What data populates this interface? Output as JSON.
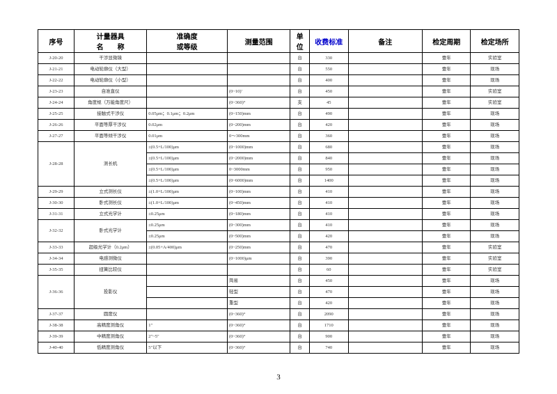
{
  "pageNumber": "3",
  "headers": [
    "序号",
    "计量器具\n名　　称",
    "准确度\n或等级",
    "测量范围",
    "单\n位",
    "收费标准",
    "备注",
    "检定周期",
    "检定场所"
  ],
  "headerBlueIdx": 5,
  "colClasses": [
    "c1",
    "c2",
    "c3",
    "c4",
    "c5",
    "c6",
    "c7",
    "c8",
    "c9"
  ],
  "rows": [
    {
      "cells": [
        "J-20-20",
        "干涉显微镜",
        "",
        "",
        "台",
        "330",
        "",
        "壹年",
        "实验室"
      ]
    },
    {
      "cells": [
        "J-21-21",
        "电动轮廓仪（大型）",
        "",
        "",
        "台",
        "550",
        "",
        "壹年",
        "现场"
      ]
    },
    {
      "cells": [
        "J-22-22",
        "电动轮廓仪（小型）",
        "",
        "",
        "台",
        "400",
        "",
        "壹年",
        "现场"
      ]
    },
    {
      "cells": [
        "J-23-23",
        "自准直仪",
        "",
        "(0~10)′",
        "台",
        "450",
        "",
        "壹年",
        "实验室"
      ]
    },
    {
      "cells": [
        "J-24-24",
        "角度规（万能角度尺）",
        "",
        "(0~360)°",
        "支",
        "45",
        "",
        "壹年",
        "实验室"
      ]
    },
    {
      "cells": [
        "J-25-25",
        "接触式干涉仪",
        "0.05μm；0.1μm；0.2μm",
        "(0~150)mm",
        "台",
        "490",
        "",
        "壹年",
        "现场"
      ]
    },
    {
      "cells": [
        "J-26-26",
        "平面等厚干涉仪",
        "0.02μm",
        "(0~200)mm",
        "台",
        "420",
        "",
        "壹年",
        "现场"
      ]
    },
    {
      "cells": [
        "J-27-27",
        "平面等倾干涉仪",
        "0.01μm",
        "0～300mm",
        "台",
        "360",
        "",
        "壹年",
        "现场"
      ]
    },
    {
      "cells": [
        {
          "t": "J-28-28",
          "rs": 4
        },
        {
          "t": "测长机",
          "rs": 4
        },
        "±(0.5+L/100)μm",
        "(0~1000)mm",
        "台",
        "680",
        "",
        "壹年",
        "现场"
      ]
    },
    {
      "cells": [
        "±(0.5+L/100)μm",
        "(0~2000)mm",
        "台",
        "840",
        "",
        "壹年",
        "现场"
      ]
    },
    {
      "cells": [
        "±(0.5+L/100)μm",
        "0~3000mm",
        "台",
        "950",
        "",
        "壹年",
        "现场"
      ]
    },
    {
      "cells": [
        "±(0.5+L/100)μm",
        "(0~6000)mm",
        "台",
        "1400",
        "",
        "壹年",
        "现场"
      ]
    },
    {
      "cells": [
        "J-29-29",
        "立式测长仪",
        "±(1.0+L/100)μm",
        "(0~100)mm",
        "台",
        "410",
        "",
        "壹年",
        "现场"
      ]
    },
    {
      "cells": [
        "J-30-30",
        "卧式测长仪",
        "±(1.0+L/100)μm",
        "(0~450)mm",
        "台",
        "410",
        "",
        "壹年",
        "现场"
      ]
    },
    {
      "cells": [
        "J-31-31",
        "立式光学计",
        "±0.25μm",
        "(0~180)mm",
        "台",
        "410",
        "",
        "壹年",
        "现场"
      ]
    },
    {
      "cells": [
        {
          "t": "J-32-32",
          "rs": 2
        },
        {
          "t": "卧式光学计",
          "rs": 2
        },
        "±0.25μm",
        "(0~300)mm",
        "台",
        "410",
        "",
        "壹年",
        "现场"
      ]
    },
    {
      "cells": [
        "±0.25μm",
        "(0~500)mm",
        "台",
        "420",
        "",
        "壹年",
        "现场"
      ]
    },
    {
      "cells": [
        "J-33-33",
        "超级光学计（0.2μm）",
        "±(0.05+A/400)μm",
        "(0~250)mm",
        "台",
        "470",
        "",
        "壹年",
        "实验室"
      ]
    },
    {
      "cells": [
        "J-34-34",
        "电感测微仪",
        "",
        "(0~1000)μm",
        "台",
        "390",
        "",
        "壹年",
        "实验室"
      ]
    },
    {
      "cells": [
        "J-35-35",
        "扭簧比较仪",
        "",
        "",
        "台",
        "60",
        "",
        "壹年",
        "实验室"
      ]
    },
    {
      "cells": [
        {
          "t": "J-36-36",
          "rs": 3
        },
        {
          "t": "投影仪",
          "rs": 3
        },
        "",
        "简易",
        "台",
        "450",
        "",
        "壹年",
        "现场"
      ]
    },
    {
      "cells": [
        "",
        "轻型",
        "台",
        "470",
        "",
        "壹年",
        "现场"
      ]
    },
    {
      "cells": [
        "",
        "重型",
        "台",
        "420",
        "",
        "壹年",
        "现场"
      ]
    },
    {
      "cells": [
        "J-37-37",
        "圆度仪",
        "",
        "(0~360)°",
        "台",
        "2090",
        "",
        "壹年",
        "现场"
      ]
    },
    {
      "cells": [
        "J-38-38",
        "高精度测角仪",
        "1″",
        "(0~360)°",
        "台",
        "1710",
        "",
        "壹年",
        "现场"
      ]
    },
    {
      "cells": [
        "J-39-39",
        "中精度测角仪",
        "2″~5″",
        "(0~360)°",
        "台",
        "900",
        "",
        "壹年",
        "现场"
      ]
    },
    {
      "cells": [
        "J-40-40",
        "低精度测角仪",
        "5″以下",
        "(0~360)°",
        "台",
        "740",
        "",
        "壹年",
        "现场"
      ]
    }
  ]
}
